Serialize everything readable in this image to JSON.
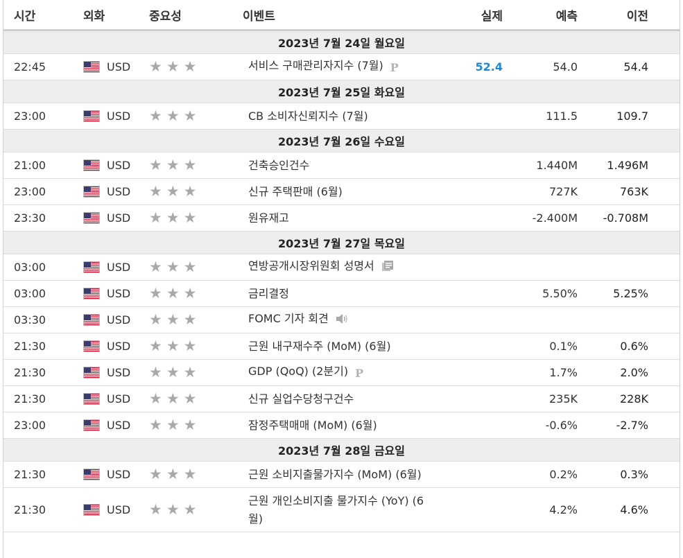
{
  "header": {
    "time": "시간",
    "currency": "외화",
    "importance": "중요성",
    "event": "이벤트",
    "actual": "실제",
    "forecast": "예측",
    "previous": "이전"
  },
  "colors": {
    "actual": "#1e88d6",
    "star": "#a9a9a9",
    "day_bg": "#eeeeee"
  },
  "days": [
    {
      "label": "2023년 7월 24일 월요일",
      "events": [
        {
          "time": "22:45",
          "currency": "USD",
          "event": "서비스 구매관리자지수 (7월)",
          "icon": "preliminary-icon",
          "actual": "52.4",
          "forecast": "54.0",
          "previous": "54.4"
        }
      ]
    },
    {
      "label": "2023년 7월 25일 화요일",
      "events": [
        {
          "time": "23:00",
          "currency": "USD",
          "event": "CB 소비자신뢰지수 (7월)",
          "icon": "",
          "actual": "",
          "forecast": "111.5",
          "previous": "109.7"
        }
      ]
    },
    {
      "label": "2023년 7월 26일 수요일",
      "events": [
        {
          "time": "21:00",
          "currency": "USD",
          "event": "건축승인건수",
          "icon": "",
          "actual": "",
          "forecast": "1.440M",
          "previous": "1.496M"
        },
        {
          "time": "23:00",
          "currency": "USD",
          "event": "신규 주택판매 (6월)",
          "icon": "",
          "actual": "",
          "forecast": "727K",
          "previous": "763K"
        },
        {
          "time": "23:30",
          "currency": "USD",
          "event": "원유재고",
          "icon": "",
          "actual": "",
          "forecast": "-2.400M",
          "previous": "-0.708M"
        }
      ]
    },
    {
      "label": "2023년 7월 27일 목요일",
      "events": [
        {
          "time": "03:00",
          "currency": "USD",
          "event": "연방공개시장위원회 성명서",
          "icon": "document-icon",
          "actual": "",
          "forecast": "",
          "previous": ""
        },
        {
          "time": "03:00",
          "currency": "USD",
          "event": "금리결정",
          "icon": "",
          "actual": "",
          "forecast": "5.50%",
          "previous": "5.25%"
        },
        {
          "time": "03:30",
          "currency": "USD",
          "event": "FOMC 기자 회견",
          "icon": "speaker-icon",
          "actual": "",
          "forecast": "",
          "previous": ""
        },
        {
          "time": "21:30",
          "currency": "USD",
          "event": "근원 내구재수주 (MoM) (6월)",
          "icon": "",
          "actual": "",
          "forecast": "0.1%",
          "previous": "0.6%"
        },
        {
          "time": "21:30",
          "currency": "USD",
          "event": "GDP (QoQ) (2분기)",
          "icon": "preliminary-icon",
          "actual": "",
          "forecast": "1.7%",
          "previous": "2.0%"
        },
        {
          "time": "21:30",
          "currency": "USD",
          "event": "신규 실업수당청구건수",
          "icon": "",
          "actual": "",
          "forecast": "235K",
          "previous": "228K"
        },
        {
          "time": "23:00",
          "currency": "USD",
          "event": "잠정주택매매 (MoM) (6월)",
          "icon": "",
          "actual": "",
          "forecast": "-0.6%",
          "previous": "-2.7%"
        }
      ]
    },
    {
      "label": "2023년 7월 28일 금요일",
      "events": [
        {
          "time": "21:30",
          "currency": "USD",
          "event": "근원 소비지출물가지수 (MoM) (6월)",
          "icon": "",
          "actual": "",
          "forecast": "0.2%",
          "previous": "0.3%"
        },
        {
          "time": "21:30",
          "currency": "USD",
          "event": "근원 개인소비지출 물가지수 (YoY) (6월)",
          "icon": "",
          "actual": "",
          "forecast": "4.2%",
          "previous": "4.6%"
        }
      ]
    }
  ]
}
